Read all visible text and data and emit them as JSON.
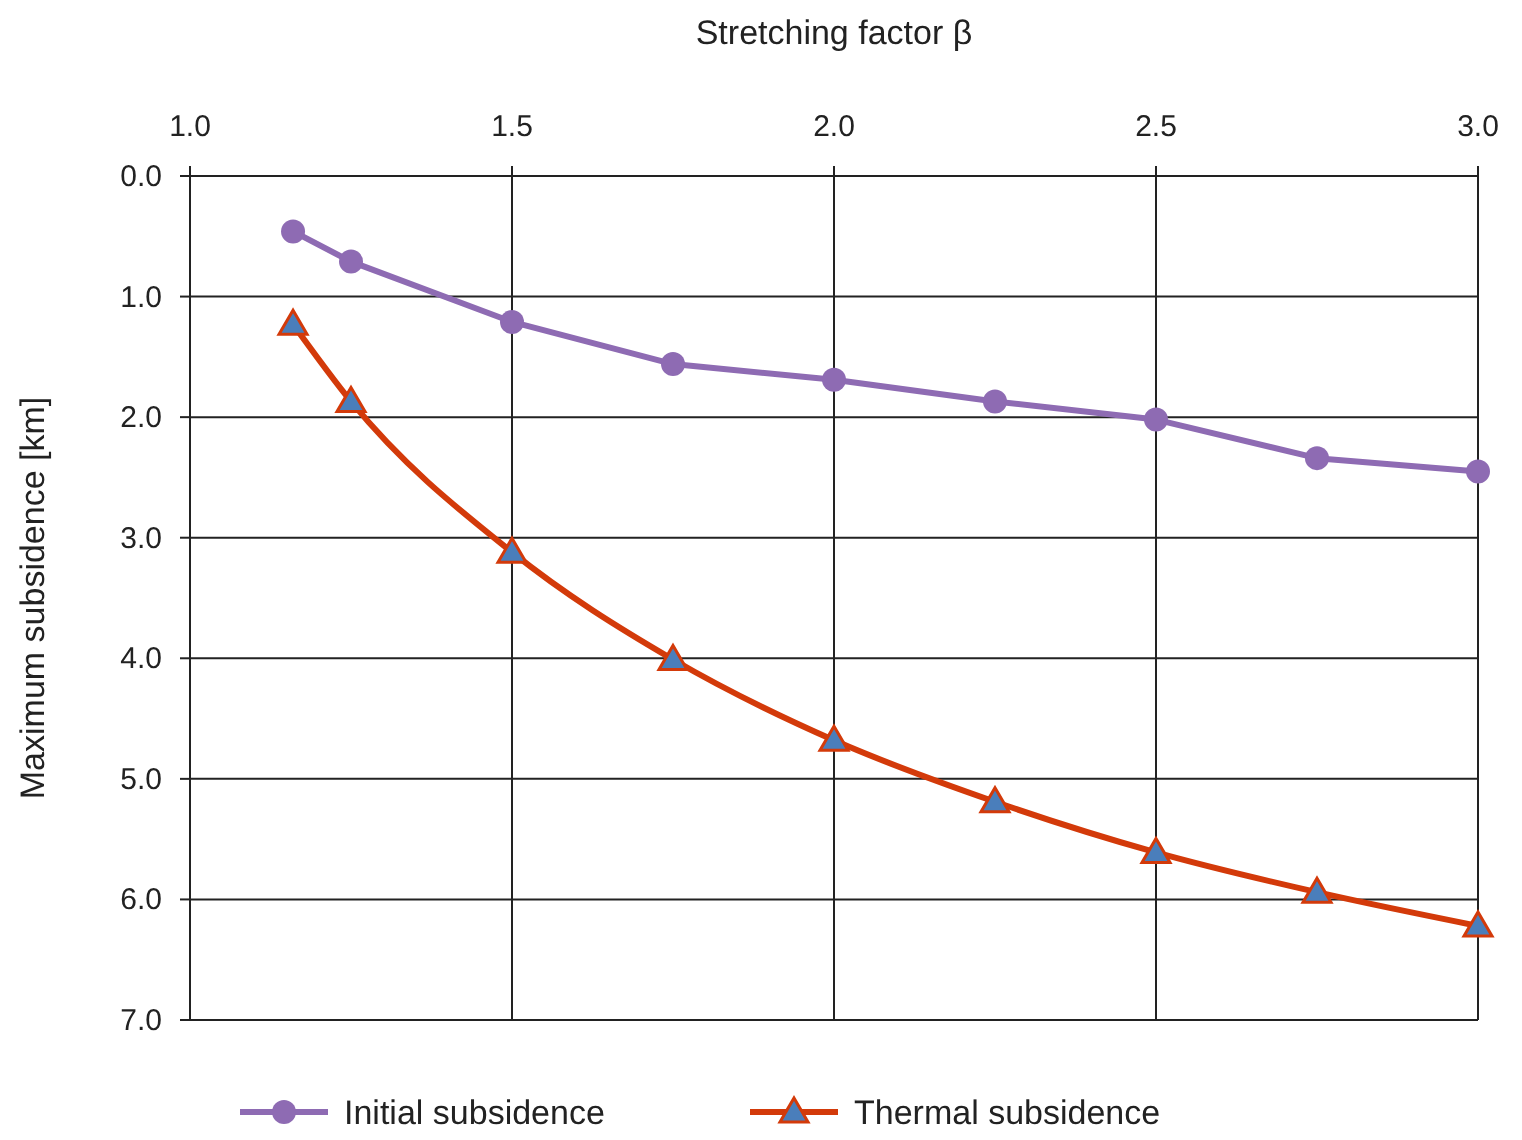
{
  "chart_data": {
    "type": "line",
    "xlabel": "Stretching factor β",
    "ylabel": "Maximum subsidence [km]",
    "xlim": [
      1.0,
      3.0
    ],
    "xticks": [
      {
        "value": 1.0,
        "label": "1.0"
      },
      {
        "value": 1.5,
        "label": "1.5"
      },
      {
        "value": 2.0,
        "label": "2.0"
      },
      {
        "value": 2.5,
        "label": "2.5"
      },
      {
        "value": 3.0,
        "label": "3.0"
      }
    ],
    "ylim": [
      7.0,
      0.0
    ],
    "yticks": [
      {
        "value": 0,
        "label": "0.0"
      },
      {
        "value": 1,
        "label": "1.0"
      },
      {
        "value": 2,
        "label": "2.0"
      },
      {
        "value": 3,
        "label": "3.0"
      },
      {
        "value": 4,
        "label": "4.0"
      },
      {
        "value": 5,
        "label": "5.0"
      },
      {
        "value": 6,
        "label": "6.0"
      },
      {
        "value": 7,
        "label": "7.0"
      }
    ],
    "x": [
      1.16,
      1.25,
      1.5,
      1.75,
      2.0,
      2.25,
      2.5,
      2.75,
      3.0
    ],
    "grid": true,
    "legend": "bottom",
    "series": [
      {
        "name": "Initial subsidence",
        "color": "#8e6bb3",
        "marker": "circle",
        "values": [
          0.46,
          0.71,
          1.21,
          1.56,
          1.69,
          1.87,
          2.02,
          2.34,
          2.45
        ]
      },
      {
        "name": "Thermal subsidence",
        "color": "#d33a0a",
        "marker": "triangle",
        "values": [
          1.23,
          1.87,
          3.12,
          4.01,
          4.68,
          5.19,
          5.61,
          5.94,
          6.22
        ]
      }
    ]
  }
}
